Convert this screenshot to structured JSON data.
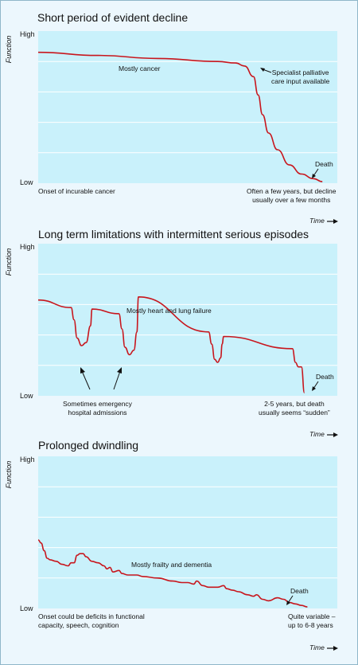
{
  "colors": {
    "page_background": "#ecf7fd",
    "plot_background": "#c9f1fb",
    "gridline": "#ffffff",
    "curve": "#c8161d",
    "text": "#111111"
  },
  "axis": {
    "ylabel": "Function",
    "high_label": "High",
    "low_label": "Low",
    "xlabel": "Time",
    "time_arrow_icon": "right-arrow-icon"
  },
  "chart_data": [
    {
      "type": "line",
      "title": "Short period of evident decline",
      "ylabel": "Function",
      "xlabel": "Time",
      "ylim": [
        0,
        100
      ],
      "xlim": [
        0,
        100
      ],
      "y_ticks": [
        "Low",
        "High"
      ],
      "grid": true,
      "series": [
        {
          "x": [
            0,
            20,
            40,
            60,
            66,
            69,
            72,
            73.5,
            75,
            77,
            80,
            84,
            88,
            92,
            95
          ],
          "y": [
            86,
            84,
            82,
            80,
            79,
            77,
            70,
            58,
            45,
            33,
            22,
            12,
            6,
            3,
            1
          ]
        }
      ],
      "annotations": [
        {
          "text": "Mostly cancer"
        },
        {
          "text": "Specialist palliative care input available"
        },
        {
          "text": "Death"
        },
        {
          "text": "Onset of incurable cancer"
        },
        {
          "text": "Often a few years, but decline usually over a few months"
        }
      ]
    },
    {
      "type": "line",
      "title": "Long term limitations with intermittent serious episodes",
      "ylabel": "Function",
      "xlabel": "Time",
      "ylim": [
        0,
        100
      ],
      "xlim": [
        0,
        100
      ],
      "y_ticks": [
        "Low",
        "High"
      ],
      "grid": true,
      "series": [
        {
          "x": [
            0,
            11,
            12,
            13,
            14.5,
            16,
            17.5,
            18,
            27,
            28,
            29,
            30.5,
            32,
            33,
            33.5,
            57,
            58,
            59,
            60,
            61,
            61.5,
            62,
            85,
            86,
            87,
            88,
            89
          ],
          "y": [
            63,
            58,
            50,
            38,
            33,
            35,
            46,
            57,
            54,
            44,
            32,
            27,
            30,
            42,
            65,
            42,
            34,
            24,
            22,
            25,
            34,
            39,
            31,
            22,
            19,
            19,
            2
          ]
        }
      ],
      "annotations": [
        {
          "text": "Mostly heart and lung failure"
        },
        {
          "text": "Sometimes emergency hospital admissions"
        },
        {
          "text": "Death"
        },
        {
          "text": "2-5 years, but death usually seems “sudden”"
        }
      ]
    },
    {
      "type": "line",
      "title": "Prolonged dwindling",
      "ylabel": "Function",
      "xlabel": "Time",
      "ylim": [
        0,
        100
      ],
      "xlim": [
        0,
        100
      ],
      "y_ticks": [
        "Low",
        "High"
      ],
      "grid": true,
      "series": [
        {
          "x": [
            0,
            1,
            2,
            3,
            4,
            6,
            8,
            10,
            11,
            12,
            13,
            14,
            15,
            16,
            18,
            20,
            22,
            23,
            24,
            25,
            27,
            28,
            30,
            33,
            35,
            40,
            45,
            48,
            50,
            52,
            53,
            55,
            57,
            60,
            62,
            63,
            65,
            67,
            70,
            72,
            73,
            75,
            77,
            80,
            82,
            84,
            86,
            88,
            90
          ],
          "y": [
            45,
            43,
            38,
            33,
            32,
            31,
            29,
            28,
            30,
            30,
            35,
            36,
            36,
            34,
            31,
            30,
            28,
            26,
            27,
            24,
            25,
            23,
            22,
            22,
            21,
            20,
            18,
            17,
            17,
            16,
            18,
            15,
            14,
            14,
            15,
            13,
            12,
            11,
            9,
            8,
            9,
            6,
            5,
            7,
            6,
            4,
            3,
            2,
            1
          ]
        }
      ],
      "annotations": [
        {
          "text": "Mostly frailty and dementia"
        },
        {
          "text": "Death"
        },
        {
          "text": "Onset could be deficits in functional capacity, speech, cognition"
        },
        {
          "text": "Quite variable – up to 6-8 years"
        }
      ]
    }
  ],
  "panels": [
    {
      "annotations": {
        "mid_label": "Mostly cancer",
        "side_note_line1": "Specialist palliative",
        "side_note_line2": "care input available",
        "death": "Death",
        "onset": "Onset of incurable cancer",
        "duration_line1": "Often a few years, but decline",
        "duration_line2": "usually over a few months"
      }
    },
    {
      "annotations": {
        "mid_label": "Mostly heart and lung failure",
        "admissions_line1": "Sometimes emergency",
        "admissions_line2": "hospital admissions",
        "death": "Death",
        "duration_line1": "2-5 years, but death",
        "duration_line2": "usually seems “sudden”"
      }
    },
    {
      "annotations": {
        "mid_label": "Mostly frailty and dementia",
        "death": "Death",
        "onset_line1": "Onset could be deficits in functional",
        "onset_line2": "capacity, speech, cognition",
        "duration_line1": "Quite variable –",
        "duration_line2": "up to 6-8 years"
      }
    }
  ]
}
